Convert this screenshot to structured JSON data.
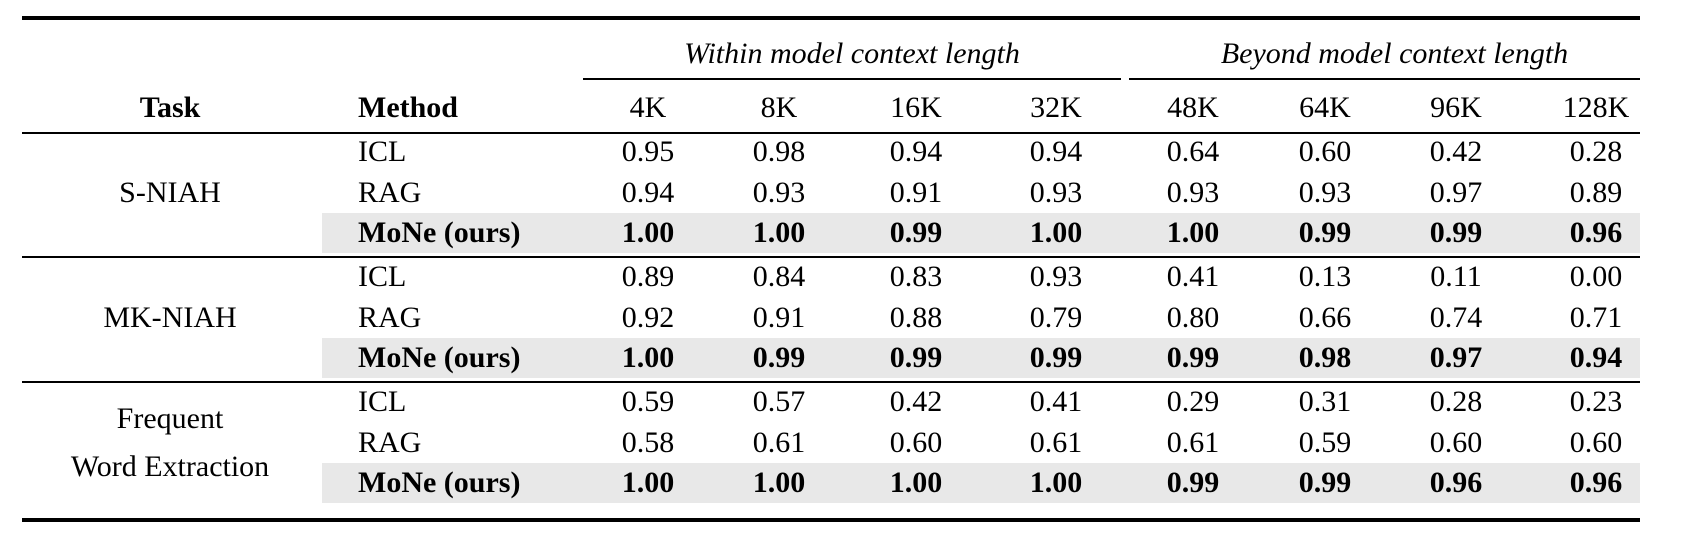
{
  "table": {
    "column_groups": [
      {
        "label": "Within model context length",
        "span": [
          0,
          3
        ]
      },
      {
        "label": "Beyond model context length",
        "span": [
          4,
          7
        ]
      }
    ],
    "header": {
      "task": "Task",
      "method": "Method",
      "columns": [
        "4K",
        "8K",
        "16K",
        "32K",
        "48K",
        "64K",
        "96K",
        "128K"
      ]
    },
    "sections": [
      {
        "task": [
          "S-NIAH"
        ],
        "rows": [
          {
            "method": "ICL",
            "values": [
              "0.95",
              "0.98",
              "0.94",
              "0.94",
              "0.64",
              "0.60",
              "0.42",
              "0.28"
            ]
          },
          {
            "method": "RAG",
            "values": [
              "0.94",
              "0.93",
              "0.91",
              "0.93",
              "0.93",
              "0.93",
              "0.97",
              "0.89"
            ]
          },
          {
            "method": "MoNe (ours)",
            "bold": true,
            "values": [
              "1.00",
              "1.00",
              "0.99",
              "1.00",
              "1.00",
              "0.99",
              "0.99",
              "0.96"
            ]
          }
        ]
      },
      {
        "task": [
          "MK-NIAH"
        ],
        "rows": [
          {
            "method": "ICL",
            "values": [
              "0.89",
              "0.84",
              "0.83",
              "0.93",
              "0.41",
              "0.13",
              "0.11",
              "0.00"
            ]
          },
          {
            "method": "RAG",
            "values": [
              "0.92",
              "0.91",
              "0.88",
              "0.79",
              "0.80",
              "0.66",
              "0.74",
              "0.71"
            ]
          },
          {
            "method": "MoNe (ours)",
            "bold": true,
            "values": [
              "1.00",
              "0.99",
              "0.99",
              "0.99",
              "0.99",
              "0.98",
              "0.97",
              "0.94"
            ]
          }
        ]
      },
      {
        "task": [
          "Frequent",
          "Word Extraction"
        ],
        "rows": [
          {
            "method": "ICL",
            "values": [
              "0.59",
              "0.57",
              "0.42",
              "0.41",
              "0.29",
              "0.31",
              "0.28",
              "0.23"
            ]
          },
          {
            "method": "RAG",
            "values": [
              "0.58",
              "0.61",
              "0.60",
              "0.61",
              "0.61",
              "0.59",
              "0.60",
              "0.60"
            ]
          },
          {
            "method": "MoNe (ours)",
            "bold": true,
            "values": [
              "1.00",
              "1.00",
              "1.00",
              "1.00",
              "0.99",
              "0.99",
              "0.96",
              "0.96"
            ]
          }
        ]
      }
    ]
  }
}
